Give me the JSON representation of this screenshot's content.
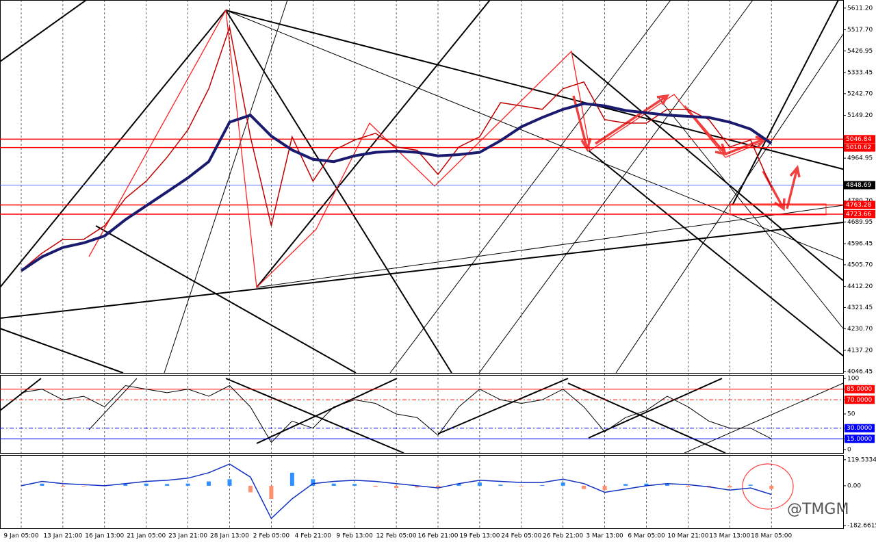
{
  "chart_data": {
    "type": "line",
    "categories": [
      "9 Jan 05:00",
      null,
      "13 Jan 21:00",
      null,
      "16 Jan 13:00",
      null,
      "21 Jan 05:00",
      null,
      "23 Jan 21:00",
      null,
      "28 Jan 13:00",
      null,
      "2 Feb 05:00",
      null,
      "4 Feb 21:00",
      null,
      "9 Feb 13:00",
      null,
      "12 Feb 05:00",
      null,
      "16 Feb 21:00",
      null,
      "19 Feb 13:00",
      null,
      "24 Feb 05:00",
      null,
      "26 Feb 21:00",
      null,
      "3 Mar 13:00",
      null,
      "6 Mar 05:00",
      null,
      "10 Mar 21:00",
      null,
      "13 Mar 13:00",
      null,
      "18 Mar 05:00"
    ],
    "series": [
      {
        "color": "#c00000",
        "values": [
          4482,
          4556,
          4615,
          4615,
          4674,
          4792,
          4866,
          4969,
          5087,
          5264,
          5529,
          5057,
          4674,
          5057,
          4866,
          4999,
          5043,
          5072,
          5013,
          4999,
          4895,
          5013,
          5057,
          5204,
          5190,
          5175,
          5264,
          5293,
          5131,
          5116,
          5116,
          5175,
          5175,
          5131,
          5013,
          5043,
          4837
        ]
      },
      {
        "color": "#1a1a6e",
        "values": [
          4480,
          4540,
          4580,
          4600,
          4630,
          4700,
          4760,
          4820,
          4880,
          4950,
          5120,
          5150,
          5060,
          5000,
          4960,
          4950,
          4975,
          4990,
          4995,
          4990,
          4975,
          4980,
          4990,
          5040,
          5100,
          5140,
          5175,
          5200,
          5190,
          5170,
          5160,
          5150,
          5145,
          5140,
          5120,
          5090,
          5028
        ]
      }
    ],
    "ylim": [
      4040,
      5646
    ],
    "yticks": [
      {
        "value": 5611.2,
        "label": "5611.20"
      },
      {
        "value": 5517.7,
        "label": "5517.70"
      },
      5426.95,
      5333.45,
      {
        "value": 5242.7,
        "label": "5242.70"
      },
      {
        "value": 5149.2,
        "label": "5149.20"
      },
      4964.95,
      {
        "value": 4780.7,
        "label": "4780.70"
      },
      4689.95,
      4596.45,
      {
        "value": 4505.7,
        "label": "4505.70"
      },
      {
        "value": 4412.2,
        "label": "4412.20"
      },
      4321.45,
      {
        "value": 4230.7,
        "label": "4230.70"
      },
      {
        "value": 4137.2,
        "label": "4137.20"
      },
      4046.45
    ],
    "levels": [
      {
        "value": 5046.84,
        "color": "#ff0000"
      },
      {
        "value": 5010.62,
        "color": "#ff0000"
      },
      {
        "value": 4848.69,
        "color": "#000000"
      },
      {
        "value": 4763.28,
        "color": "#ff0000"
      },
      {
        "value": 4723.66,
        "color": "#ff0000"
      }
    ],
    "stochastic": {
      "ylim": [
        -5,
        105
      ],
      "yticks": [
        100,
        {
          "value": 85,
          "label": "85.0000"
        },
        {
          "value": 70,
          "label": "70.0000"
        },
        50,
        {
          "value": 30,
          "label": "30.0000"
        },
        {
          "value": 15,
          "label": "15.0000"
        },
        0
      ],
      "color": "#000000",
      "values": [
        80,
        85,
        70,
        75,
        60,
        90,
        85,
        80,
        85,
        75,
        90,
        60,
        10,
        40,
        30,
        60,
        70,
        65,
        50,
        45,
        20,
        60,
        85,
        70,
        65,
        70,
        85,
        60,
        25,
        45,
        55,
        75,
        60,
        40,
        30,
        30,
        15
      ]
    },
    "macd": {
      "ylim": [
        -195,
        141
      ],
      "yticks": [
        119.5334,
        {
          "value": 0,
          "label": "0.00"
        },
        -182.6615
      ],
      "color": "#1030c0",
      "hist_up": "#3090ff",
      "hist_down": "#ff9070",
      "values": [
        0,
        20,
        10,
        5,
        0,
        10,
        20,
        25,
        35,
        60,
        100,
        40,
        -150,
        -60,
        10,
        20,
        25,
        20,
        10,
        0,
        -10,
        10,
        25,
        20,
        15,
        15,
        30,
        10,
        -30,
        -15,
        0,
        10,
        5,
        -5,
        -20,
        -10,
        -40
      ],
      "histogram": [
        0,
        10,
        -5,
        -3,
        0,
        8,
        10,
        8,
        10,
        20,
        30,
        -30,
        -60,
        60,
        30,
        10,
        8,
        -5,
        -10,
        -8,
        -10,
        10,
        15,
        5,
        -3,
        3,
        15,
        -15,
        -20,
        8,
        10,
        8,
        -5,
        -8,
        -8,
        5,
        -15
      ]
    },
    "watermark": "@TMGM"
  }
}
